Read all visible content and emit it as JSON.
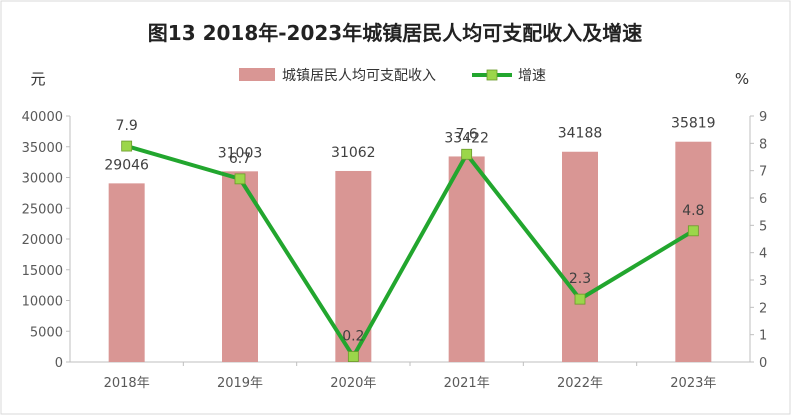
{
  "chart_data": {
    "type": "bar",
    "title": "图13  2018年-2023年城镇居民人均可支配收入及增速",
    "categories": [
      "2018年",
      "2019年",
      "2020年",
      "2021年",
      "2022年",
      "2023年"
    ],
    "y_left": {
      "unit": "元",
      "ylim": [
        0,
        40000
      ],
      "ticks": [
        "0",
        "5000",
        "10000",
        "15000",
        "20000",
        "25000",
        "30000",
        "35000",
        "40000"
      ]
    },
    "y_right": {
      "unit": "%",
      "ylim": [
        0,
        9
      ],
      "ticks": [
        "0",
        "1",
        "2",
        "3",
        "4",
        "5",
        "6",
        "7",
        "8",
        "9"
      ]
    },
    "series": [
      {
        "name": "城镇居民人均可支配收入",
        "type": "bar",
        "axis": "left",
        "color": "#D99694",
        "values": [
          29046,
          31003,
          31062,
          33422,
          34188,
          35819
        ]
      },
      {
        "name": "增速",
        "type": "line",
        "axis": "right",
        "color": "#22A62E",
        "marker_color": "#9BD64A",
        "values": [
          7.9,
          6.7,
          0.2,
          7.6,
          2.3,
          4.8
        ]
      }
    ],
    "grid": false,
    "legend": "top"
  }
}
